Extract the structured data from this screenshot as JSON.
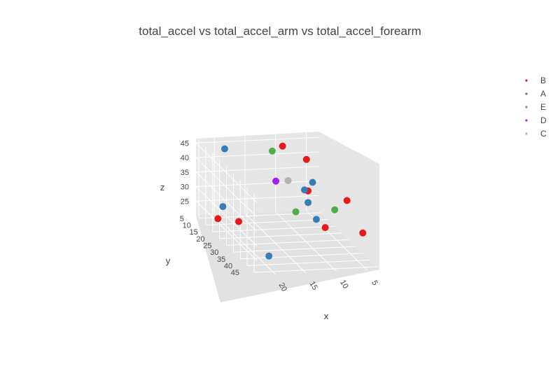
{
  "chart_data": {
    "type": "scatter",
    "title": "total_accel vs total_accel_arm vs total_accel_forearm",
    "x_axis": {
      "label": "x",
      "ticks": [
        "20",
        "15",
        "10",
        "5"
      ]
    },
    "y_axis": {
      "label": "y",
      "ticks": [
        "5",
        "10",
        "15",
        "20",
        "25",
        "30",
        "35",
        "40",
        "45"
      ]
    },
    "z_axis": {
      "label": "z",
      "ticks": [
        "25",
        "30",
        "35",
        "40",
        "45"
      ]
    },
    "grid": true,
    "legend_placement": "top-right",
    "series": [
      {
        "name": "B",
        "color": "#e41a1c",
        "points": [
          {
            "x": 10,
            "y": 8,
            "z": 45
          },
          {
            "x": 7,
            "y": 12,
            "z": 42
          },
          {
            "x": 21,
            "y": 25,
            "z": 28
          },
          {
            "x": 21,
            "y": 10,
            "z": 22
          },
          {
            "x": 9,
            "y": 22,
            "z": 36
          },
          {
            "x": 4,
            "y": 28,
            "z": 35
          },
          {
            "x": 8,
            "y": 30,
            "z": 27
          },
          {
            "x": 3,
            "y": 35,
            "z": 27
          }
        ]
      },
      {
        "name": "A",
        "color": "#377eb8",
        "points": [
          {
            "x": 19,
            "y": 6,
            "z": 44
          },
          {
            "x": 22,
            "y": 18,
            "z": 30
          },
          {
            "x": 6,
            "y": 12,
            "z": 34
          },
          {
            "x": 8,
            "y": 15,
            "z": 33
          },
          {
            "x": 9,
            "y": 22,
            "z": 32
          },
          {
            "x": 9,
            "y": 28,
            "z": 29
          },
          {
            "x": 19,
            "y": 38,
            "z": 22
          }
        ]
      },
      {
        "name": "E",
        "color": "#4daf4a",
        "points": [
          {
            "x": 11,
            "y": 5,
            "z": 42
          },
          {
            "x": 11,
            "y": 22,
            "z": 29
          },
          {
            "x": 6,
            "y": 28,
            "z": 32
          }
        ]
      },
      {
        "name": "D",
        "color": "#a020f0",
        "points": [
          {
            "x": 12,
            "y": 12,
            "z": 35
          }
        ]
      },
      {
        "name": "C",
        "color": "#b3b3b3",
        "points": [
          {
            "x": 10,
            "y": 12,
            "z": 35
          }
        ]
      }
    ]
  }
}
